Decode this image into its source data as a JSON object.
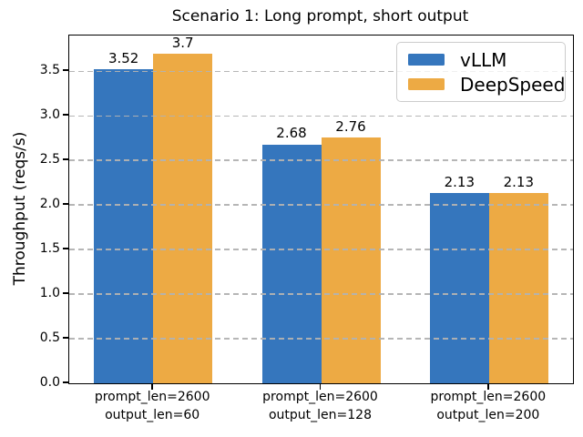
{
  "chart_data": {
    "type": "bar",
    "title": "Scenario 1: Long prompt, short output",
    "ylabel": "Throughput (reqs/s)",
    "xlabel": "",
    "categories": [
      "prompt_len=2600\noutput_len=60",
      "prompt_len=2600\noutput_len=128",
      "prompt_len=2600\noutput_len=200"
    ],
    "series": [
      {
        "name": "vLLM",
        "color": "#3576bd",
        "values": [
          3.52,
          2.68,
          2.13
        ]
      },
      {
        "name": "DeepSpeed",
        "color": "#edaa44",
        "values": [
          3.7,
          2.76,
          2.13
        ]
      }
    ],
    "bar_value_labels": [
      [
        "3.52",
        "2.68",
        "2.13"
      ],
      [
        "3.7",
        "2.76",
        "2.13"
      ]
    ],
    "ylim": [
      0,
      3.9
    ],
    "yticks": [
      0,
      0.5,
      1,
      1.5,
      2,
      2.5,
      3,
      3.5
    ],
    "ytick_labels": [
      "0.0",
      "0.5",
      "1.0",
      "1.5",
      "2.0",
      "2.5",
      "3.0",
      "3.5"
    ],
    "grid": {
      "axis": "y",
      "style": "dashed",
      "color": "#b2b2b2",
      "on_top_of_bars": true
    },
    "legend": {
      "position": "upper right",
      "entries": [
        "vLLM",
        "DeepSpeed"
      ]
    }
  }
}
